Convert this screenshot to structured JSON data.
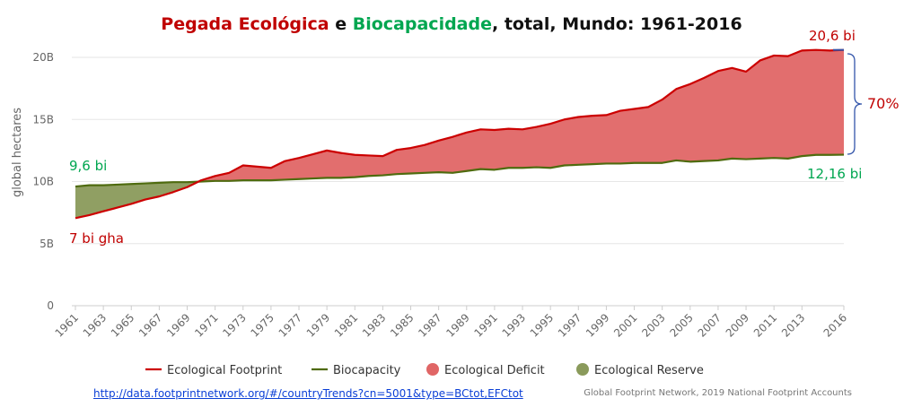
{
  "title": {
    "part1": "Pegada Ecológica",
    "part2": " e ",
    "part3": "Biocapacidade",
    "part4": ", total, Mundo: 1961-2016"
  },
  "colors": {
    "footprint": "#cc0000",
    "biocapacity": "#4f6b0f",
    "deficit": "#e06666",
    "reserve": "#8a9a5b",
    "title_red": "#c00000",
    "title_green": "#00a650",
    "annotation_blue": "#3355aa"
  },
  "annotations": {
    "start_footprint": "7 bi gha",
    "start_biocapacity": "9,6 bi",
    "end_footprint": "20,6 bi",
    "end_biocapacity": "12,16 bi",
    "gap_percent": "70%"
  },
  "source_link": "http://data.footprintnetwork.org/#/countryTrends?cn=5001&type=BCtot,EFCtot",
  "credit": "Global Footprint Network, 2019 National Footprint Accounts",
  "chart_data": {
    "type": "area",
    "ylabel": "global hectares",
    "ylim": [
      0,
      20000000000
    ],
    "yticks": [
      0,
      5000000000,
      10000000000,
      15000000000,
      20000000000
    ],
    "ytick_labels": [
      "0",
      "5B",
      "10B",
      "15B",
      "20B"
    ],
    "x_tick_labels": [
      "1961",
      "1963",
      "1965",
      "1967",
      "1969",
      "1971",
      "1973",
      "1975",
      "1977",
      "1979",
      "1981",
      "1983",
      "1985",
      "1987",
      "1989",
      "1991",
      "1993",
      "1995",
      "1997",
      "1999",
      "2001",
      "2003",
      "2005",
      "2007",
      "2009",
      "2011",
      "2013",
      "2016"
    ],
    "x": [
      1961,
      1962,
      1963,
      1964,
      1965,
      1966,
      1967,
      1968,
      1969,
      1970,
      1971,
      1972,
      1973,
      1974,
      1975,
      1976,
      1977,
      1978,
      1979,
      1980,
      1981,
      1982,
      1983,
      1984,
      1985,
      1986,
      1987,
      1988,
      1989,
      1990,
      1991,
      1992,
      1993,
      1994,
      1995,
      1996,
      1997,
      1998,
      1999,
      2000,
      2001,
      2002,
      2003,
      2004,
      2005,
      2006,
      2007,
      2008,
      2009,
      2010,
      2011,
      2012,
      2013,
      2014,
      2015,
      2016
    ],
    "series": [
      {
        "name": "Ecological Footprint",
        "values": [
          7.05,
          7.3,
          7.6,
          7.9,
          8.2,
          8.55,
          8.8,
          9.15,
          9.55,
          10.1,
          10.45,
          10.7,
          11.3,
          11.2,
          11.1,
          11.65,
          11.9,
          12.2,
          12.5,
          12.3,
          12.15,
          12.1,
          12.05,
          12.55,
          12.7,
          12.95,
          13.3,
          13.6,
          13.95,
          14.2,
          14.15,
          14.25,
          14.2,
          14.4,
          14.65,
          15.0,
          15.2,
          15.3,
          15.35,
          15.7,
          15.85,
          16.0,
          16.6,
          17.45,
          17.85,
          18.35,
          18.9,
          19.15,
          18.85,
          19.75,
          20.15,
          20.1,
          20.55,
          20.6,
          20.55,
          20.6
        ]
      },
      {
        "name": "Biocapacity",
        "values": [
          9.6,
          9.7,
          9.7,
          9.75,
          9.8,
          9.85,
          9.9,
          9.95,
          9.95,
          10.0,
          10.05,
          10.05,
          10.1,
          10.1,
          10.1,
          10.15,
          10.2,
          10.25,
          10.3,
          10.3,
          10.35,
          10.45,
          10.5,
          10.6,
          10.65,
          10.7,
          10.75,
          10.7,
          10.85,
          11.0,
          10.95,
          11.1,
          11.1,
          11.15,
          11.1,
          11.3,
          11.35,
          11.4,
          11.45,
          11.45,
          11.5,
          11.5,
          11.5,
          11.7,
          11.6,
          11.65,
          11.7,
          11.85,
          11.8,
          11.85,
          11.9,
          11.85,
          12.05,
          12.15,
          12.15,
          12.16
        ]
      }
    ],
    "value_unit": "billion global hectares",
    "legend": {
      "placement": "bottom",
      "items": [
        "Ecological Footprint",
        "Biocapacity",
        "Ecological Deficit",
        "Ecological Reserve"
      ]
    },
    "grid": "horizontal"
  }
}
